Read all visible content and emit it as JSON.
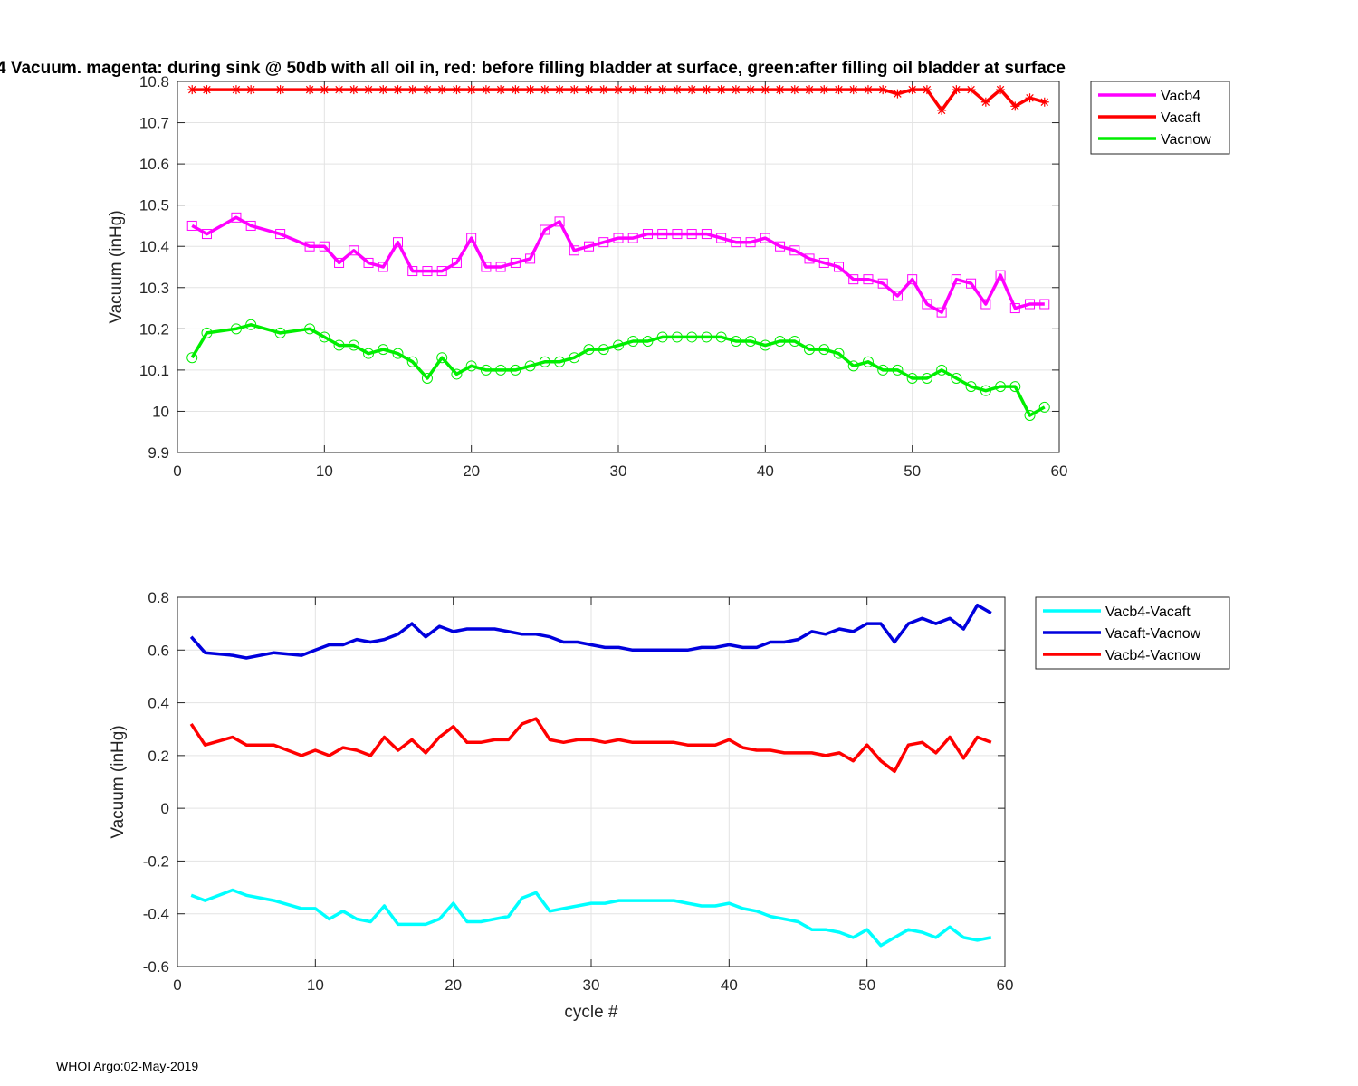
{
  "title": "4 Vacuum. magenta: during sink @ 50db with all oil in, red: before filling bladder at surface, green:after filling oil bladder at surface",
  "footer": "WHOI Argo:02-May-2019",
  "colors": {
    "magenta": "#ff00ff",
    "red": "#ff0000",
    "green": "#00ee00",
    "cyan": "#00ffff",
    "blue": "#0000dd"
  },
  "chart_data": [
    {
      "type": "line",
      "ylabel": "Vacuum (inHg)",
      "xlabel": "",
      "xlim": [
        0,
        60
      ],
      "ylim": [
        9.9,
        10.8
      ],
      "xticks": [
        "0",
        "10",
        "20",
        "30",
        "40",
        "50",
        "60"
      ],
      "yticks": [
        "9.9",
        "10",
        "10.1",
        "10.2",
        "10.3",
        "10.4",
        "10.5",
        "10.6",
        "10.7",
        "10.8"
      ],
      "grid": true,
      "legend": "outside-top-right",
      "x": [
        1,
        2,
        4,
        5,
        7,
        9,
        10,
        11,
        12,
        13,
        14,
        15,
        16,
        17,
        18,
        19,
        20,
        21,
        22,
        23,
        24,
        25,
        26,
        27,
        28,
        29,
        30,
        31,
        32,
        33,
        34,
        35,
        36,
        37,
        38,
        39,
        40,
        41,
        42,
        43,
        44,
        45,
        46,
        47,
        48,
        49,
        50,
        51,
        52,
        53,
        54,
        55,
        56,
        57,
        58,
        59
      ],
      "series": [
        {
          "name": "Vacb4",
          "color": "#ff00ff",
          "marker": "square",
          "values": [
            10.45,
            10.43,
            10.47,
            10.45,
            10.43,
            10.4,
            10.4,
            10.36,
            10.39,
            10.36,
            10.35,
            10.41,
            10.34,
            10.34,
            10.34,
            10.36,
            10.42,
            10.35,
            10.35,
            10.36,
            10.37,
            10.44,
            10.46,
            10.39,
            10.4,
            10.41,
            10.42,
            10.42,
            10.43,
            10.43,
            10.43,
            10.43,
            10.43,
            10.42,
            10.41,
            10.41,
            10.42,
            10.4,
            10.39,
            10.37,
            10.36,
            10.35,
            10.32,
            10.32,
            10.31,
            10.28,
            10.32,
            10.26,
            10.24,
            10.32,
            10.31,
            10.26,
            10.33,
            10.25,
            10.26,
            10.26
          ]
        },
        {
          "name": "Vacaft",
          "color": "#ff0000",
          "marker": "star",
          "values": [
            10.78,
            10.78,
            10.78,
            10.78,
            10.78,
            10.78,
            10.78,
            10.78,
            10.78,
            10.78,
            10.78,
            10.78,
            10.78,
            10.78,
            10.78,
            10.78,
            10.78,
            10.78,
            10.78,
            10.78,
            10.78,
            10.78,
            10.78,
            10.78,
            10.78,
            10.78,
            10.78,
            10.78,
            10.78,
            10.78,
            10.78,
            10.78,
            10.78,
            10.78,
            10.78,
            10.78,
            10.78,
            10.78,
            10.78,
            10.78,
            10.78,
            10.78,
            10.78,
            10.78,
            10.78,
            10.77,
            10.78,
            10.78,
            10.73,
            10.78,
            10.78,
            10.75,
            10.78,
            10.74,
            10.76,
            10.75
          ]
        },
        {
          "name": "Vacnow",
          "color": "#00ee00",
          "marker": "circle",
          "values": [
            10.13,
            10.19,
            10.2,
            10.21,
            10.19,
            10.2,
            10.18,
            10.16,
            10.16,
            10.14,
            10.15,
            10.14,
            10.12,
            10.08,
            10.13,
            10.09,
            10.11,
            10.1,
            10.1,
            10.1,
            10.11,
            10.12,
            10.12,
            10.13,
            10.15,
            10.15,
            10.16,
            10.17,
            10.17,
            10.18,
            10.18,
            10.18,
            10.18,
            10.18,
            10.17,
            10.17,
            10.16,
            10.17,
            10.17,
            10.15,
            10.15,
            10.14,
            10.11,
            10.12,
            10.1,
            10.1,
            10.08,
            10.08,
            10.1,
            10.08,
            10.06,
            10.05,
            10.06,
            10.06,
            9.99,
            10.01
          ]
        }
      ]
    },
    {
      "type": "line",
      "ylabel": "Vacuum (inHg)",
      "xlabel": "cycle #",
      "xlim": [
        0,
        60
      ],
      "ylim": [
        -0.6,
        0.8
      ],
      "xticks": [
        "0",
        "10",
        "20",
        "30",
        "40",
        "50",
        "60"
      ],
      "yticks": [
        "-0.6",
        "-0.4",
        "-0.2",
        "0",
        "0.2",
        "0.4",
        "0.6",
        "0.8"
      ],
      "grid": true,
      "legend": "outside-top-right",
      "x": [
        1,
        2,
        4,
        5,
        7,
        9,
        10,
        11,
        12,
        13,
        14,
        15,
        16,
        17,
        18,
        19,
        20,
        21,
        22,
        23,
        24,
        25,
        26,
        27,
        28,
        29,
        30,
        31,
        32,
        33,
        34,
        35,
        36,
        37,
        38,
        39,
        40,
        41,
        42,
        43,
        44,
        45,
        46,
        47,
        48,
        49,
        50,
        51,
        52,
        53,
        54,
        55,
        56,
        57,
        58,
        59
      ],
      "series": [
        {
          "name": "Vacb4-Vacaft",
          "color": "#00ffff",
          "values": [
            -0.33,
            -0.35,
            -0.31,
            -0.33,
            -0.35,
            -0.38,
            -0.38,
            -0.42,
            -0.39,
            -0.42,
            -0.43,
            -0.37,
            -0.44,
            -0.44,
            -0.44,
            -0.42,
            -0.36,
            -0.43,
            -0.43,
            -0.42,
            -0.41,
            -0.34,
            -0.32,
            -0.39,
            -0.38,
            -0.37,
            -0.36,
            -0.36,
            -0.35,
            -0.35,
            -0.35,
            -0.35,
            -0.35,
            -0.36,
            -0.37,
            -0.37,
            -0.36,
            -0.38,
            -0.39,
            -0.41,
            -0.42,
            -0.43,
            -0.46,
            -0.46,
            -0.47,
            -0.49,
            -0.46,
            -0.52,
            -0.49,
            -0.46,
            -0.47,
            -0.49,
            -0.45,
            -0.49,
            -0.5,
            -0.49
          ]
        },
        {
          "name": "Vacaft-Vacnow",
          "color": "#0000dd",
          "values": [
            0.65,
            0.59,
            0.58,
            0.57,
            0.59,
            0.58,
            0.6,
            0.62,
            0.62,
            0.64,
            0.63,
            0.64,
            0.66,
            0.7,
            0.65,
            0.69,
            0.67,
            0.68,
            0.68,
            0.68,
            0.67,
            0.66,
            0.66,
            0.65,
            0.63,
            0.63,
            0.62,
            0.61,
            0.61,
            0.6,
            0.6,
            0.6,
            0.6,
            0.6,
            0.61,
            0.61,
            0.62,
            0.61,
            0.61,
            0.63,
            0.63,
            0.64,
            0.67,
            0.66,
            0.68,
            0.67,
            0.7,
            0.7,
            0.63,
            0.7,
            0.72,
            0.7,
            0.72,
            0.68,
            0.77,
            0.74
          ]
        },
        {
          "name": "Vacb4-Vacnow",
          "color": "#ff0000",
          "values": [
            0.32,
            0.24,
            0.27,
            0.24,
            0.24,
            0.2,
            0.22,
            0.2,
            0.23,
            0.22,
            0.2,
            0.27,
            0.22,
            0.26,
            0.21,
            0.27,
            0.31,
            0.25,
            0.25,
            0.26,
            0.26,
            0.32,
            0.34,
            0.26,
            0.25,
            0.26,
            0.26,
            0.25,
            0.26,
            0.25,
            0.25,
            0.25,
            0.25,
            0.24,
            0.24,
            0.24,
            0.26,
            0.23,
            0.22,
            0.22,
            0.21,
            0.21,
            0.21,
            0.2,
            0.21,
            0.18,
            0.24,
            0.18,
            0.14,
            0.24,
            0.25,
            0.21,
            0.27,
            0.19,
            0.27,
            0.25
          ]
        }
      ]
    }
  ]
}
